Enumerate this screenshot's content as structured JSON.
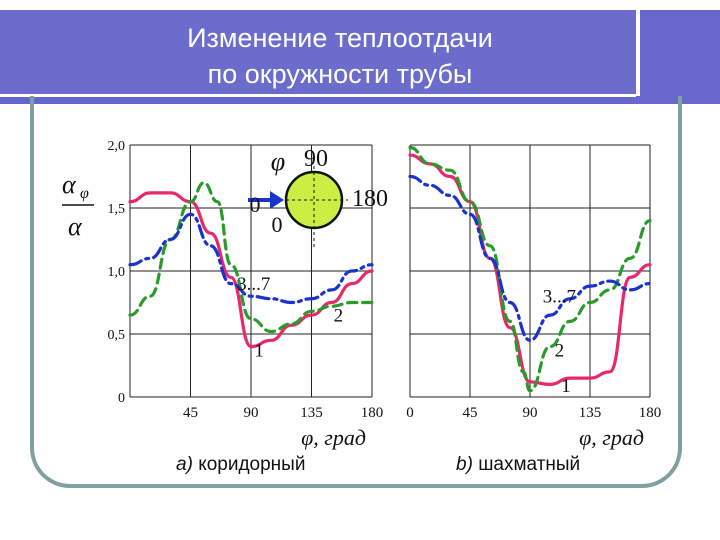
{
  "header": {
    "title_line1": "Изменение теплоотдачи",
    "title_line2": "по окружности трубы"
  },
  "chart_data": [
    {
      "panel": "a",
      "type": "line",
      "caption_letter": "а)",
      "caption": "коридорный",
      "xlabel": "φ, град",
      "ylabel": "αφ / α",
      "xlim": [
        0,
        180
      ],
      "ylim": [
        0,
        2.0
      ],
      "xticks": [
        "45",
        "90",
        "135",
        "180"
      ],
      "yticks": [
        "0",
        "0,5",
        "1,0",
        "1,5",
        "2,0"
      ],
      "grid": true,
      "series": [
        {
          "name": "1",
          "color": "#e8286a",
          "dash": "solid",
          "x": [
            0,
            15,
            30,
            45,
            60,
            75,
            90,
            105,
            120,
            135,
            150,
            165,
            180
          ],
          "y": [
            1.55,
            1.62,
            1.62,
            1.55,
            1.3,
            0.95,
            0.4,
            0.45,
            0.57,
            0.65,
            0.75,
            0.9,
            1.0
          ]
        },
        {
          "name": "2",
          "color": "#2a9a2a",
          "dash": "dashed",
          "x": [
            0,
            15,
            30,
            45,
            55,
            65,
            75,
            90,
            105,
            120,
            135,
            150,
            165,
            180
          ],
          "y": [
            0.65,
            0.8,
            1.25,
            1.55,
            1.7,
            1.55,
            1.05,
            0.62,
            0.52,
            0.58,
            0.68,
            0.72,
            0.75,
            0.75
          ]
        },
        {
          "name": "3...7",
          "color": "#1a33cc",
          "dash": "dashdot",
          "x": [
            0,
            15,
            30,
            45,
            60,
            75,
            90,
            105,
            120,
            135,
            150,
            165,
            180
          ],
          "y": [
            1.05,
            1.1,
            1.25,
            1.45,
            1.2,
            0.9,
            0.8,
            0.78,
            0.75,
            0.78,
            0.85,
            1.0,
            1.05
          ]
        }
      ],
      "series_labels": [
        {
          "text": "1",
          "x": 96,
          "y": 0.32
        },
        {
          "text": "2",
          "x": 155,
          "y": 0.6
        },
        {
          "text": "3...7",
          "x": 92,
          "y": 0.85
        }
      ],
      "inset": {
        "label_phi": "φ",
        "angle_top": "90",
        "angle_left": "0",
        "angle_right": "180",
        "angle_left_below": "0",
        "fill": "#ccee44"
      }
    },
    {
      "panel": "b",
      "type": "line",
      "caption_letter": "b)",
      "caption": "шахматный",
      "xlabel": "φ, град",
      "xlim": [
        0,
        180
      ],
      "ylim": [
        0,
        2.0
      ],
      "xticks": [
        "0",
        "45",
        "90",
        "135",
        "180"
      ],
      "grid": true,
      "series": [
        {
          "name": "1",
          "color": "#e8286a",
          "dash": "solid",
          "x": [
            0,
            15,
            30,
            45,
            60,
            75,
            90,
            105,
            120,
            135,
            150,
            165,
            180
          ],
          "y": [
            1.92,
            1.85,
            1.75,
            1.55,
            1.1,
            0.55,
            0.12,
            0.1,
            0.15,
            0.15,
            0.2,
            0.95,
            1.05
          ]
        },
        {
          "name": "2",
          "color": "#2a9a2a",
          "dash": "dashed",
          "x": [
            0,
            15,
            30,
            45,
            60,
            75,
            85,
            90,
            105,
            120,
            135,
            150,
            165,
            180
          ],
          "y": [
            1.98,
            1.85,
            1.8,
            1.55,
            1.2,
            0.6,
            0.2,
            0.05,
            0.4,
            0.6,
            0.75,
            0.85,
            1.1,
            1.4
          ]
        },
        {
          "name": "3...7",
          "color": "#1a33cc",
          "dash": "dashdot",
          "x": [
            0,
            15,
            30,
            45,
            60,
            75,
            90,
            105,
            120,
            135,
            150,
            165,
            180
          ],
          "y": [
            1.75,
            1.68,
            1.6,
            1.45,
            1.1,
            0.75,
            0.45,
            0.65,
            0.78,
            0.88,
            0.92,
            0.85,
            0.9
          ]
        }
      ],
      "series_labels": [
        {
          "text": "1",
          "x": 117,
          "y": 0.04
        },
        {
          "text": "2",
          "x": 112,
          "y": 0.32
        },
        {
          "text": "3...7",
          "x": 112,
          "y": 0.75
        }
      ]
    }
  ]
}
